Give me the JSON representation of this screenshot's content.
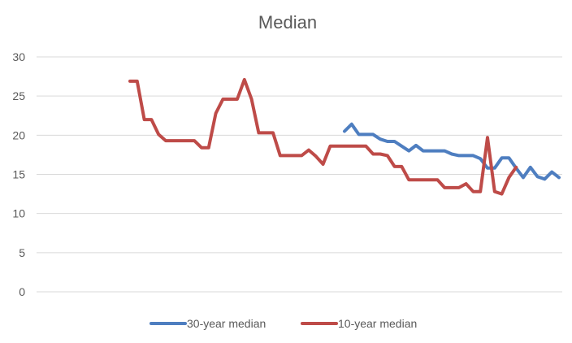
{
  "chart_data": {
    "type": "line",
    "title": "Median",
    "xlabel": "",
    "ylabel": "",
    "ylim": [
      0,
      30
    ],
    "yticks": [
      0,
      5,
      10,
      15,
      20,
      25,
      30
    ],
    "grid": true,
    "legend_position": "bottom",
    "series": [
      {
        "name": "30-year median",
        "color": "#4e7ec0",
        "start_index": 30,
        "values": [
          20.5,
          21.4,
          20.1,
          20.1,
          20.1,
          19.5,
          19.2,
          19.2,
          18.6,
          18.0,
          18.7,
          18.0,
          18.0,
          18.0,
          18.0,
          17.6,
          17.4,
          17.4,
          17.4,
          17.0,
          15.8,
          15.8,
          17.1,
          17.1,
          15.8,
          14.6,
          15.9,
          14.7,
          14.4,
          15.3,
          14.6
        ]
      },
      {
        "name": "10-year median",
        "color": "#be4b48",
        "start_index": 0,
        "values": [
          26.9,
          26.9,
          22.0,
          22.0,
          20.1,
          19.3,
          19.3,
          19.3,
          19.3,
          19.3,
          18.4,
          18.4,
          22.8,
          24.6,
          24.6,
          24.6,
          27.1,
          24.6,
          20.3,
          20.3,
          20.3,
          17.4,
          17.4,
          17.4,
          17.4,
          18.1,
          17.3,
          16.3,
          18.6,
          18.6,
          18.6,
          18.6,
          18.6,
          18.6,
          17.6,
          17.6,
          17.4,
          16.0,
          16.0,
          14.3,
          14.3,
          14.3,
          14.3,
          14.3,
          13.3,
          13.3,
          13.3,
          13.8,
          12.8,
          12.8,
          19.7,
          12.8,
          12.5,
          14.6,
          15.9
        ]
      }
    ]
  }
}
